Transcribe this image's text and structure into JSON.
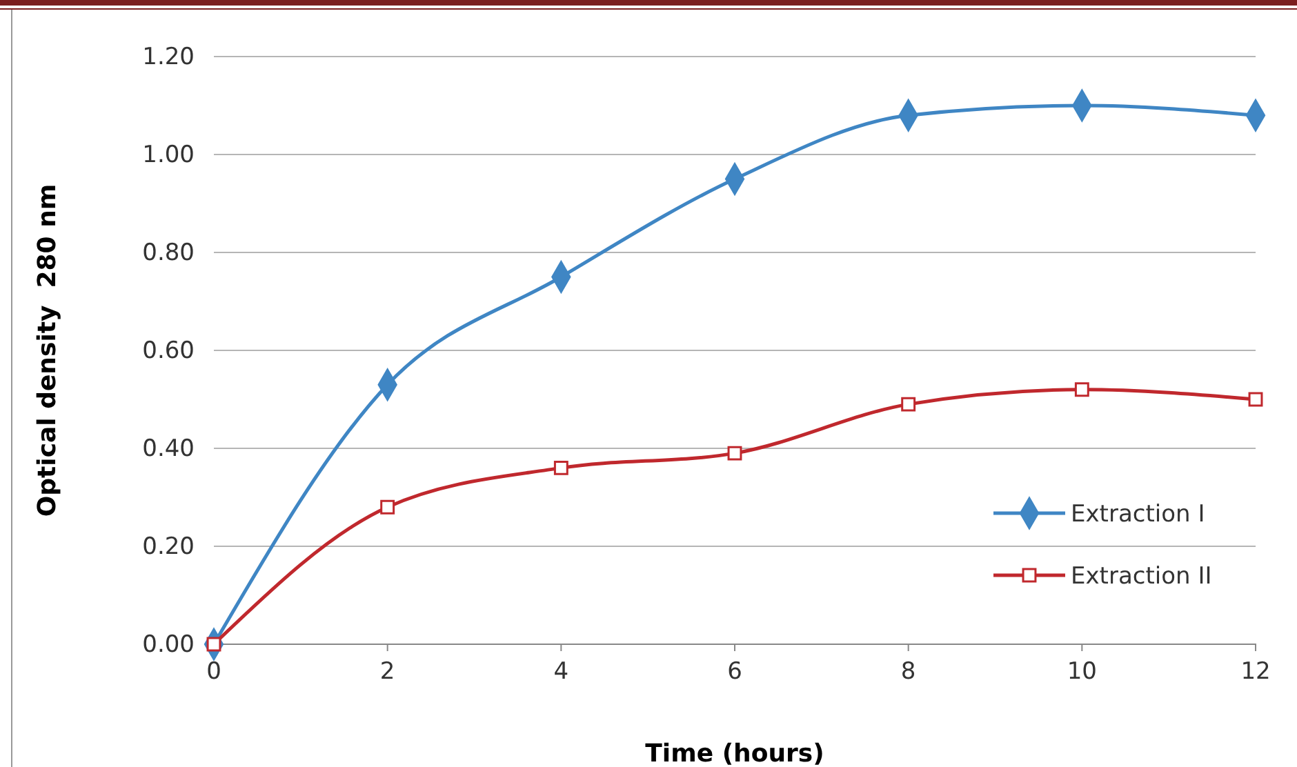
{
  "chart_data": {
    "type": "line",
    "xlabel": "Time (hours)",
    "ylabel": "Optical density  280 nm",
    "x": [
      0,
      2,
      4,
      6,
      8,
      10,
      12
    ],
    "series": [
      {
        "name": "Extraction I",
        "color": "#3f86c4",
        "marker": "diamond",
        "values": [
          0,
          0.53,
          0.75,
          0.95,
          1.08,
          1.1,
          1.08
        ]
      },
      {
        "name": "Extraction II",
        "color": "#c0282d",
        "marker": "square",
        "values": [
          0,
          0.28,
          0.36,
          0.39,
          0.49,
          0.52,
          0.5
        ]
      }
    ],
    "xlim": [
      0,
      12
    ],
    "xticks": [
      0,
      2,
      4,
      6,
      8,
      10,
      12
    ],
    "ylim": [
      0,
      1.2
    ],
    "yticks": [
      {
        "value": 0,
        "label": "0.00"
      },
      {
        "value": 0.2,
        "label": "0.20"
      },
      {
        "value": 0.4,
        "label": "0.40"
      },
      {
        "value": 0.6,
        "label": "0.60"
      },
      {
        "value": 0.8,
        "label": "0.80"
      },
      {
        "value": 1,
        "label": "1.00"
      },
      {
        "value": 1.2,
        "label": "1.20"
      }
    ],
    "grid": "y",
    "legend": "bottom right",
    "line_style": "solid"
  }
}
